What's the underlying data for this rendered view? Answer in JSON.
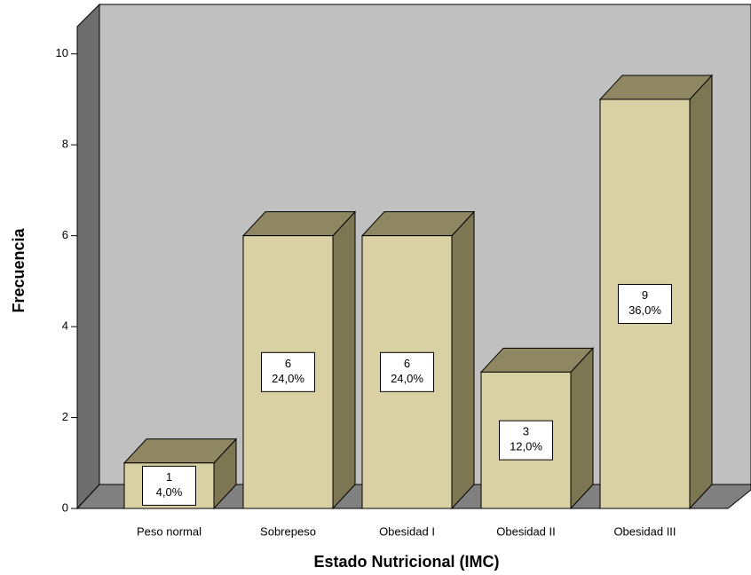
{
  "chart_data": {
    "type": "bar3d",
    "xlabel": "Estado Nutricional (IMC)",
    "ylabel": "Frecuencia",
    "categories": [
      "Peso normal",
      "Sobrepeso",
      "Obesidad I",
      "Obesidad II",
      "Obesidad III"
    ],
    "values": [
      1,
      6,
      6,
      3,
      9
    ],
    "percentages": [
      4.0,
      24.0,
      24.0,
      12.0,
      36.0
    ],
    "percentage_labels": [
      "4,0%",
      "24,0%",
      "24,0%",
      "12,0%",
      "36,0%"
    ],
    "color": "#d9d1a3",
    "ylim": [
      0,
      10.6
    ],
    "yticks": [
      0,
      2,
      4,
      6,
      8,
      10
    ]
  }
}
